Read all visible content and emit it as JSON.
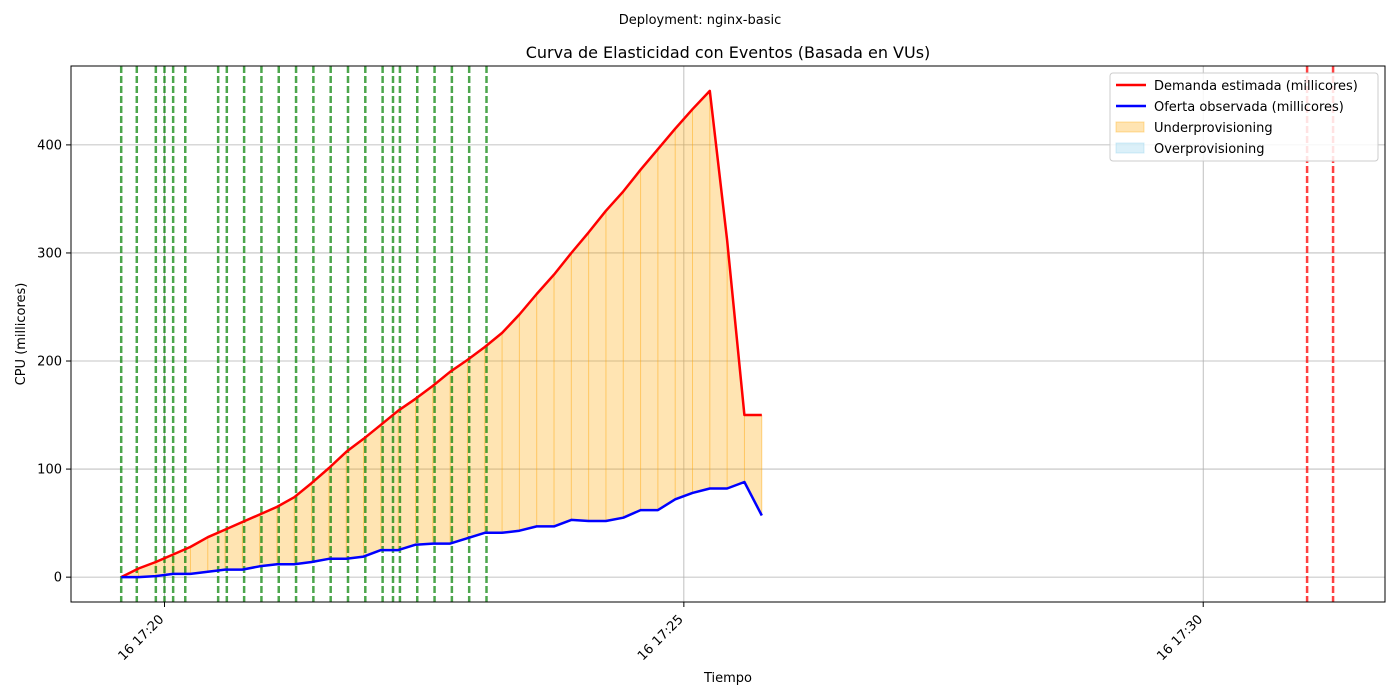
{
  "suptitle": "Deployment: nginx-basic",
  "chart_data": {
    "type": "line",
    "title": "Curva de Elasticidad con Eventos (Basada en VUs)",
    "xlabel": "Tiempo",
    "ylabel": "CPU (millicores)",
    "x_axis_type": "time",
    "xlim": [
      "17:19:06",
      "17:31:45"
    ],
    "ylim": [
      -23,
      473
    ],
    "xticks": [
      {
        "value": "17:20",
        "label": "16 17:20"
      },
      {
        "value": "17:25",
        "label": "16 17:25"
      },
      {
        "value": "17:30",
        "label": "16 17:30"
      }
    ],
    "yticks": [
      0,
      100,
      200,
      300,
      400
    ],
    "grid": true,
    "legend_position": "top-right",
    "x": [
      "17:19:35",
      "17:19:45",
      "17:19:55",
      "17:20:05",
      "17:20:15",
      "17:20:25",
      "17:20:35",
      "17:20:45",
      "17:20:55",
      "17:21:05",
      "17:21:15",
      "17:21:25",
      "17:21:35",
      "17:21:45",
      "17:21:55",
      "17:22:05",
      "17:22:15",
      "17:22:25",
      "17:22:35",
      "17:22:45",
      "17:22:55",
      "17:23:05",
      "17:23:15",
      "17:23:25",
      "17:23:35",
      "17:23:45",
      "17:23:55",
      "17:24:05",
      "17:24:15",
      "17:24:25",
      "17:24:35",
      "17:24:45",
      "17:24:55",
      "17:25:05",
      "17:25:15",
      "17:25:25",
      "17:25:35",
      "17:25:45"
    ],
    "series": [
      {
        "name": "Demanda estimada (millicores)",
        "color": "#ff0000",
        "values": [
          0,
          8,
          14,
          21,
          28,
          37,
          44,
          51,
          58,
          65,
          74,
          87,
          101,
          116,
          128,
          141,
          154,
          165,
          177,
          190,
          201,
          213,
          226,
          243,
          262,
          280,
          300,
          319,
          339,
          357,
          377,
          396,
          415,
          433,
          450,
          312,
          150,
          150
        ]
      },
      {
        "name": "Oferta observada (millicores)",
        "color": "#0000ff",
        "values": [
          0,
          0,
          1,
          3,
          3,
          5,
          7,
          7,
          10,
          12,
          12,
          14,
          17,
          17,
          19,
          25,
          25,
          30,
          31,
          31,
          36,
          41,
          41,
          43,
          47,
          47,
          53,
          52,
          52,
          55,
          62,
          62,
          72,
          78,
          82,
          82,
          88,
          57
        ]
      }
    ],
    "fills": [
      {
        "name": "Underprovisioning",
        "color": "#ffa500",
        "between": [
          "Demanda estimada (millicores)",
          "Oferta observada (millicores)"
        ],
        "when": "demand > supply"
      },
      {
        "name": "Overprovisioning",
        "color": "#87ceeb",
        "between": [
          "Oferta observada (millicores)",
          "Demanda estimada (millicores)"
        ],
        "when": "supply > demand"
      }
    ],
    "event_lines": {
      "scale_up": {
        "color": "#008000",
        "times": [
          "17:19:35",
          "17:19:44",
          "17:19:55",
          "17:20:00",
          "17:20:05",
          "17:20:12",
          "17:20:31",
          "17:20:36",
          "17:20:46",
          "17:20:56",
          "17:21:06",
          "17:21:16",
          "17:21:26",
          "17:21:36",
          "17:21:46",
          "17:21:56",
          "17:22:06",
          "17:22:12",
          "17:22:16",
          "17:22:26",
          "17:22:36",
          "17:22:46",
          "17:22:56",
          "17:23:06"
        ]
      },
      "scale_down": {
        "color": "#ff0000",
        "times": [
          "17:31:00",
          "17:31:15"
        ]
      }
    }
  }
}
